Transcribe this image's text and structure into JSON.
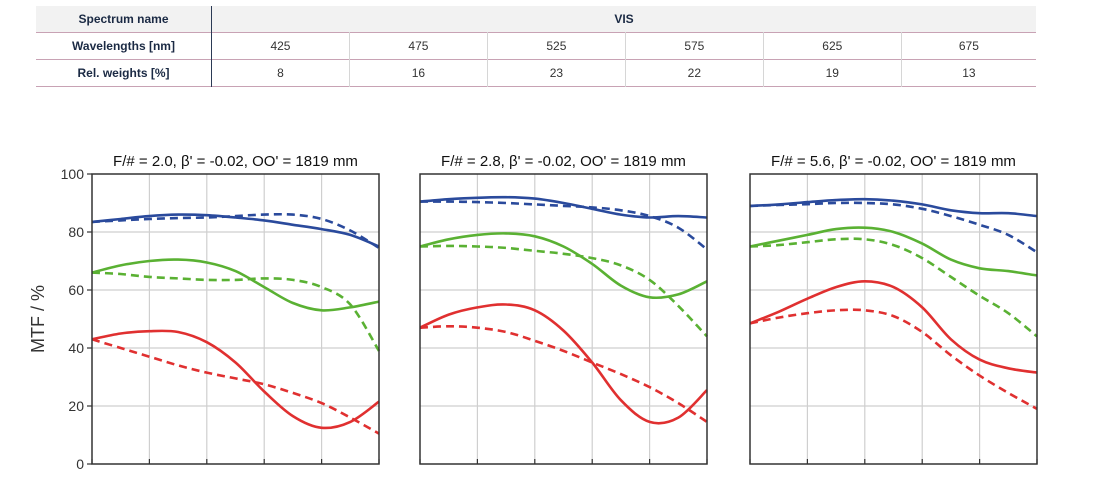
{
  "spectrum_table": {
    "row_headers": [
      "Spectrum name",
      "Wavelengths [nm]",
      "Rel. weights [%]"
    ],
    "spectrum_name": "VIS",
    "wavelengths": [
      "425",
      "475",
      "525",
      "575",
      "625",
      "675"
    ],
    "weights": [
      "8",
      "16",
      "23",
      "22",
      "19",
      "13"
    ]
  },
  "colors": {
    "blue": "#2a4a9c",
    "green": "#5ab133",
    "red": "#e03030",
    "grid": "#cfcfcf",
    "frame": "#333333"
  },
  "chart_data": [
    {
      "type": "line",
      "title": "F/# = 2.0, β' = -0.02, OO' = 1819 mm",
      "ylabel": "MTF / %",
      "ylim": [
        0,
        100
      ],
      "yticks": [
        "0",
        "20",
        "40",
        "60",
        "80",
        "100"
      ],
      "xlim": [
        0,
        1
      ],
      "grid": true,
      "series": [
        {
          "color": "blue",
          "style": "solid",
          "points": [
            [
              0,
              83.5
            ],
            [
              0.1,
              84.5
            ],
            [
              0.2,
              85.5
            ],
            [
              0.3,
              86
            ],
            [
              0.4,
              85.8
            ],
            [
              0.5,
              85
            ],
            [
              0.6,
              84
            ],
            [
              0.7,
              82.5
            ],
            [
              0.8,
              81
            ],
            [
              0.9,
              79
            ],
            [
              1,
              75
            ]
          ]
        },
        {
          "color": "blue",
          "style": "dashed",
          "points": [
            [
              0,
              83.5
            ],
            [
              0.1,
              84
            ],
            [
              0.2,
              84.5
            ],
            [
              0.3,
              84.8
            ],
            [
              0.4,
              85
            ],
            [
              0.5,
              85.5
            ],
            [
              0.6,
              86
            ],
            [
              0.7,
              86
            ],
            [
              0.8,
              84.5
            ],
            [
              0.9,
              80.5
            ],
            [
              1,
              74.5
            ]
          ]
        },
        {
          "color": "green",
          "style": "solid",
          "points": [
            [
              0,
              66
            ],
            [
              0.1,
              68.5
            ],
            [
              0.2,
              70
            ],
            [
              0.3,
              70.5
            ],
            [
              0.4,
              69.5
            ],
            [
              0.5,
              66.5
            ],
            [
              0.6,
              61
            ],
            [
              0.7,
              55.5
            ],
            [
              0.8,
              53
            ],
            [
              0.9,
              54
            ],
            [
              1,
              56
            ]
          ]
        },
        {
          "color": "green",
          "style": "dashed",
          "points": [
            [
              0,
              66
            ],
            [
              0.1,
              65.5
            ],
            [
              0.2,
              64.5
            ],
            [
              0.3,
              64
            ],
            [
              0.4,
              63.5
            ],
            [
              0.5,
              63.5
            ],
            [
              0.6,
              64
            ],
            [
              0.7,
              63.5
            ],
            [
              0.8,
              61
            ],
            [
              0.9,
              55
            ],
            [
              1,
              39
            ]
          ]
        },
        {
          "color": "red",
          "style": "solid",
          "points": [
            [
              0,
              43
            ],
            [
              0.1,
              45
            ],
            [
              0.2,
              45.8
            ],
            [
              0.3,
              45.5
            ],
            [
              0.4,
              42
            ],
            [
              0.5,
              35
            ],
            [
              0.6,
              25
            ],
            [
              0.7,
              16.5
            ],
            [
              0.8,
              12.5
            ],
            [
              0.9,
              14.5
            ],
            [
              1,
              21.5
            ]
          ]
        },
        {
          "color": "red",
          "style": "dashed",
          "points": [
            [
              0,
              43
            ],
            [
              0.1,
              40
            ],
            [
              0.2,
              37
            ],
            [
              0.3,
              34
            ],
            [
              0.4,
              31.5
            ],
            [
              0.5,
              29.5
            ],
            [
              0.6,
              27.5
            ],
            [
              0.7,
              24.5
            ],
            [
              0.8,
              21
            ],
            [
              0.9,
              16
            ],
            [
              1,
              10.5
            ]
          ]
        }
      ]
    },
    {
      "type": "line",
      "title": "F/# = 2.8, β' = -0.02, OO' = 1819 mm",
      "ylim": [
        0,
        100
      ],
      "xlim": [
        0,
        1
      ],
      "grid": true,
      "series": [
        {
          "color": "blue",
          "style": "solid",
          "points": [
            [
              0,
              90.5
            ],
            [
              0.1,
              91.3
            ],
            [
              0.2,
              91.8
            ],
            [
              0.3,
              92
            ],
            [
              0.4,
              91.5
            ],
            [
              0.5,
              90
            ],
            [
              0.6,
              88
            ],
            [
              0.7,
              86
            ],
            [
              0.8,
              85
            ],
            [
              0.9,
              85.5
            ],
            [
              1,
              85
            ]
          ]
        },
        {
          "color": "blue",
          "style": "dashed",
          "points": [
            [
              0,
              90.5
            ],
            [
              0.1,
              90.5
            ],
            [
              0.2,
              90.3
            ],
            [
              0.3,
              90
            ],
            [
              0.4,
              89.5
            ],
            [
              0.5,
              89
            ],
            [
              0.6,
              88.5
            ],
            [
              0.7,
              87.5
            ],
            [
              0.8,
              85.5
            ],
            [
              0.9,
              81.5
            ],
            [
              1,
              74
            ]
          ]
        },
        {
          "color": "green",
          "style": "solid",
          "points": [
            [
              0,
              75
            ],
            [
              0.1,
              77.5
            ],
            [
              0.2,
              79
            ],
            [
              0.3,
              79.5
            ],
            [
              0.4,
              78.5
            ],
            [
              0.5,
              75
            ],
            [
              0.6,
              69
            ],
            [
              0.7,
              61.5
            ],
            [
              0.8,
              57.5
            ],
            [
              0.9,
              58.5
            ],
            [
              1,
              63
            ]
          ]
        },
        {
          "color": "green",
          "style": "dashed",
          "points": [
            [
              0,
              75
            ],
            [
              0.1,
              75.2
            ],
            [
              0.2,
              75
            ],
            [
              0.3,
              74.5
            ],
            [
              0.4,
              73.5
            ],
            [
              0.5,
              72.5
            ],
            [
              0.6,
              71
            ],
            [
              0.7,
              68.5
            ],
            [
              0.8,
              63.5
            ],
            [
              0.9,
              54.5
            ],
            [
              1,
              44
            ]
          ]
        },
        {
          "color": "red",
          "style": "solid",
          "points": [
            [
              0,
              47
            ],
            [
              0.1,
              51.5
            ],
            [
              0.2,
              54
            ],
            [
              0.3,
              55
            ],
            [
              0.4,
              53
            ],
            [
              0.5,
              46
            ],
            [
              0.6,
              35
            ],
            [
              0.7,
              22
            ],
            [
              0.8,
              14.5
            ],
            [
              0.9,
              16
            ],
            [
              1,
              25.5
            ]
          ]
        },
        {
          "color": "red",
          "style": "dashed",
          "points": [
            [
              0,
              47
            ],
            [
              0.1,
              47.5
            ],
            [
              0.2,
              47
            ],
            [
              0.3,
              45.5
            ],
            [
              0.4,
              42.5
            ],
            [
              0.5,
              39
            ],
            [
              0.6,
              35
            ],
            [
              0.7,
              31
            ],
            [
              0.8,
              26.5
            ],
            [
              0.9,
              21
            ],
            [
              1,
              14.5
            ]
          ]
        }
      ]
    },
    {
      "type": "line",
      "title": "F/# = 5.6, β' = -0.02, OO' = 1819 mm",
      "ylim": [
        0,
        100
      ],
      "xlim": [
        0,
        1
      ],
      "grid": true,
      "series": [
        {
          "color": "blue",
          "style": "solid",
          "points": [
            [
              0,
              89
            ],
            [
              0.1,
              89.5
            ],
            [
              0.2,
              90.3
            ],
            [
              0.3,
              91
            ],
            [
              0.4,
              91.3
            ],
            [
              0.5,
              90.8
            ],
            [
              0.6,
              89.5
            ],
            [
              0.7,
              87.5
            ],
            [
              0.8,
              86.5
            ],
            [
              0.9,
              86.5
            ],
            [
              1,
              85.5
            ]
          ]
        },
        {
          "color": "blue",
          "style": "dashed",
          "points": [
            [
              0,
              89
            ],
            [
              0.1,
              89.3
            ],
            [
              0.2,
              89.6
            ],
            [
              0.3,
              90
            ],
            [
              0.4,
              90
            ],
            [
              0.5,
              89.5
            ],
            [
              0.6,
              88
            ],
            [
              0.7,
              85.5
            ],
            [
              0.8,
              82.5
            ],
            [
              0.9,
              79
            ],
            [
              1,
              73
            ]
          ]
        },
        {
          "color": "green",
          "style": "solid",
          "points": [
            [
              0,
              75
            ],
            [
              0.1,
              77
            ],
            [
              0.2,
              79
            ],
            [
              0.3,
              81
            ],
            [
              0.4,
              81.5
            ],
            [
              0.5,
              80
            ],
            [
              0.6,
              76
            ],
            [
              0.7,
              70.5
            ],
            [
              0.8,
              67.5
            ],
            [
              0.9,
              66.5
            ],
            [
              1,
              65
            ]
          ]
        },
        {
          "color": "green",
          "style": "dashed",
          "points": [
            [
              0,
              75
            ],
            [
              0.1,
              75.5
            ],
            [
              0.2,
              76.5
            ],
            [
              0.3,
              77.5
            ],
            [
              0.4,
              77.5
            ],
            [
              0.5,
              75.5
            ],
            [
              0.6,
              71
            ],
            [
              0.7,
              64.5
            ],
            [
              0.8,
              58
            ],
            [
              0.9,
              52
            ],
            [
              1,
              44
            ]
          ]
        },
        {
          "color": "red",
          "style": "solid",
          "points": [
            [
              0,
              48.5
            ],
            [
              0.1,
              52.5
            ],
            [
              0.2,
              57
            ],
            [
              0.3,
              61
            ],
            [
              0.4,
              63
            ],
            [
              0.5,
              61
            ],
            [
              0.6,
              54
            ],
            [
              0.7,
              43
            ],
            [
              0.8,
              36
            ],
            [
              0.9,
              33
            ],
            [
              1,
              31.5
            ]
          ]
        },
        {
          "color": "red",
          "style": "dashed",
          "points": [
            [
              0,
              48.5
            ],
            [
              0.1,
              50.5
            ],
            [
              0.2,
              52
            ],
            [
              0.3,
              53
            ],
            [
              0.4,
              53
            ],
            [
              0.5,
              51
            ],
            [
              0.6,
              45.5
            ],
            [
              0.7,
              37.5
            ],
            [
              0.8,
              30.5
            ],
            [
              0.9,
              24.5
            ],
            [
              1,
              19
            ]
          ]
        }
      ]
    }
  ]
}
